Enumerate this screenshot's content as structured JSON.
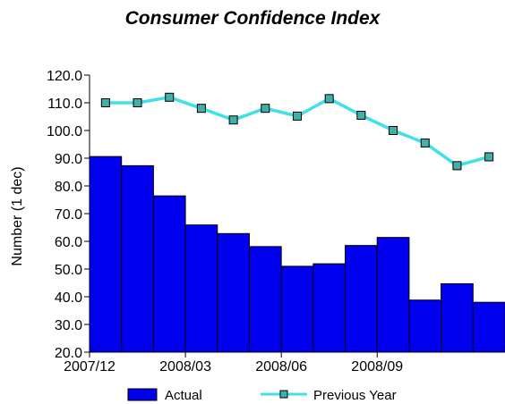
{
  "colors": {
    "bar_fill": "#0000ee",
    "bar_stroke": "#000000",
    "line": "#40e0e8",
    "marker_fill": "#40b0a8",
    "marker_stroke": "#000000"
  },
  "chart_data": {
    "type": "bar",
    "title": "Consumer Confidence Index",
    "ylabel": "Number (1 dec)",
    "xlabel": "",
    "ylim": [
      20,
      120
    ],
    "yticks": [
      "120.0",
      "110.0",
      "100.0",
      "90.0",
      "80.0",
      "70.0",
      "60.0",
      "50.0",
      "40.0",
      "30.0",
      "20.0"
    ],
    "x_tick_labels": [
      {
        "label": "2007/12",
        "index": 0
      },
      {
        "label": "2008/03",
        "index": 3
      },
      {
        "label": "2008/06",
        "index": 6
      },
      {
        "label": "2008/09",
        "index": 9
      }
    ],
    "grid": false,
    "legend": "bottom",
    "series": [
      {
        "name": "Actual",
        "kind": "bar",
        "values": [
          90.6,
          87.3,
          76.4,
          65.9,
          62.8,
          58.1,
          51.0,
          51.9,
          58.5,
          61.4,
          38.8,
          44.7,
          38.0
        ]
      },
      {
        "name": "Previous Year",
        "kind": "line",
        "values": [
          110.0,
          110.0,
          112.0,
          108.0,
          103.8,
          108.0,
          105.2,
          111.5,
          105.5,
          100.0,
          95.5,
          87.3,
          90.5
        ]
      }
    ]
  }
}
